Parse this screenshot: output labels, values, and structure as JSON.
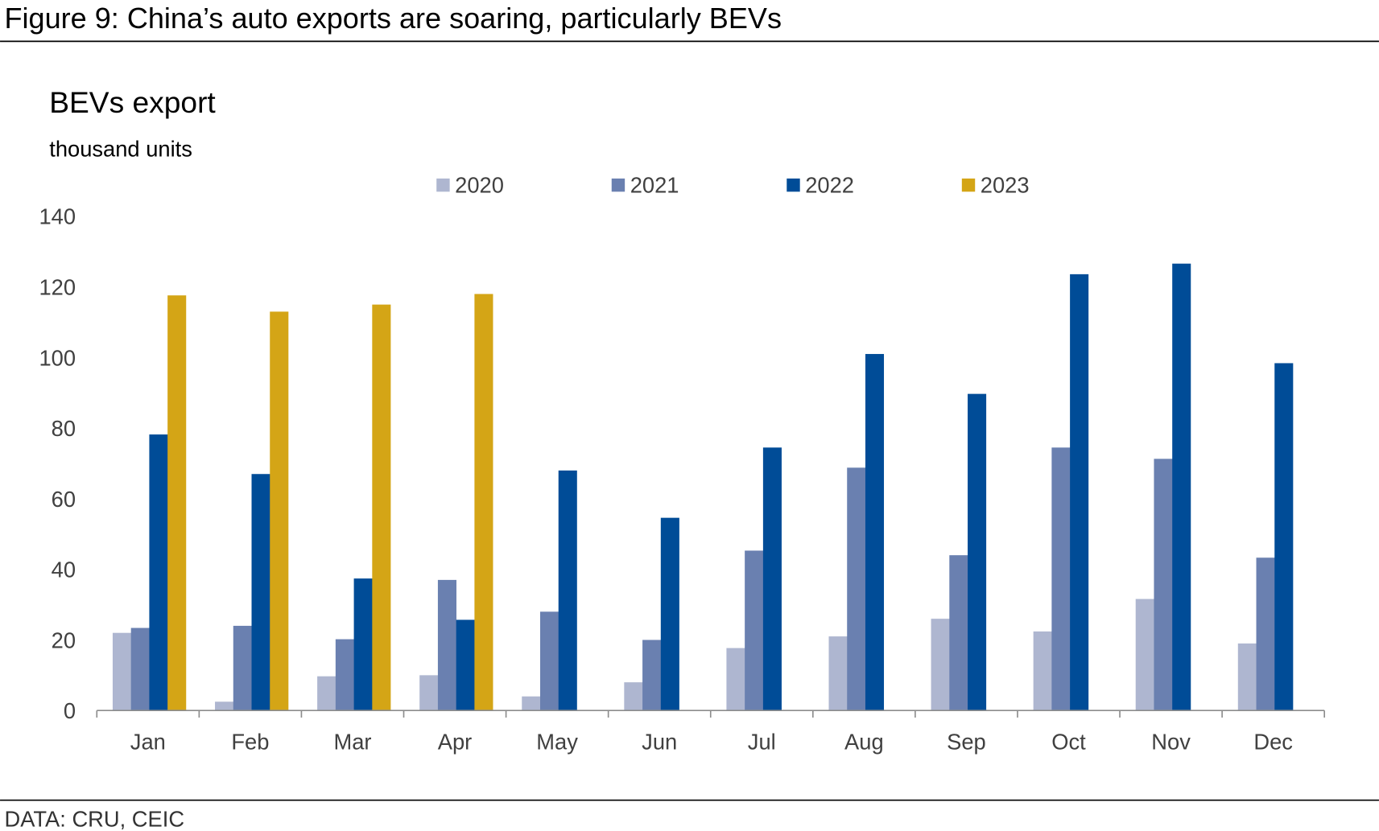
{
  "figure_title": "Figure 9: China’s auto exports are soaring, particularly BEVs",
  "source": "DATA: CRU, CEIC",
  "chart_data": {
    "type": "bar",
    "title": "BEVs export",
    "subtitle": "thousand units",
    "xlabel": "",
    "ylabel": "",
    "ylim": [
      0,
      140
    ],
    "yticks": [
      0,
      20,
      40,
      60,
      80,
      100,
      120,
      140
    ],
    "grid": false,
    "legend_placement": "top-center",
    "categories": [
      "Jan",
      "Feb",
      "Mar",
      "Apr",
      "May",
      "Jun",
      "Jul",
      "Aug",
      "Sep",
      "Oct",
      "Nov",
      "Dec"
    ],
    "series": [
      {
        "name": "2020",
        "color": "#aeb6d0",
        "values": [
          22,
          2.5,
          9.7,
          10,
          4,
          8,
          17.7,
          21,
          26,
          22.4,
          31.6,
          19
        ]
      },
      {
        "name": "2021",
        "color": "#6a80b0",
        "values": [
          23.4,
          24,
          20.2,
          37,
          28,
          20,
          45.3,
          68.8,
          44,
          74.5,
          71.3,
          43.3
        ]
      },
      {
        "name": "2022",
        "color": "#004c97",
        "values": [
          78.2,
          67,
          37.4,
          25.7,
          68,
          54.6,
          74.5,
          101,
          89.7,
          123.6,
          126.6,
          98.4
        ]
      },
      {
        "name": "2023",
        "color": "#d4a516",
        "values": [
          117.6,
          113,
          115,
          118,
          null,
          null,
          null,
          null,
          null,
          null,
          null,
          null
        ]
      }
    ]
  }
}
